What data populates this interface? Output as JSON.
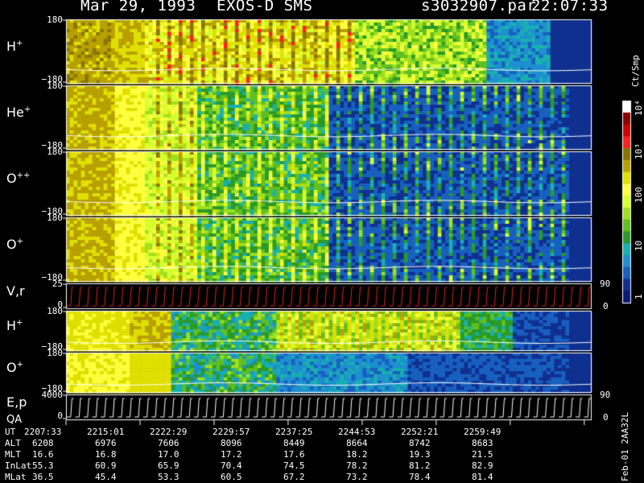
{
  "header": {
    "date": "Mar 29, 1993",
    "instrument": "EXOS-D SMS",
    "file": "s3032907.par",
    "time": "22:07:33"
  },
  "panels": [
    {
      "label": "H",
      "sup": "+",
      "top_tick": "180",
      "bottom_tick": "−180",
      "style": "spectro_h"
    },
    {
      "label": "He",
      "sup": "+",
      "top_tick": "180",
      "bottom_tick": "−180",
      "style": "spectro_fade"
    },
    {
      "label": "O",
      "sup": "++",
      "top_tick": "180",
      "bottom_tick": "−180",
      "style": "spectro_fade"
    },
    {
      "label": "O",
      "sup": "+",
      "top_tick": "180",
      "bottom_tick": "−180",
      "style": "spectro_fade"
    },
    {
      "label": "V,r",
      "sup": "",
      "top_tick": "25",
      "bottom_tick": "0",
      "right_top": "90",
      "right_bottom": "0",
      "style": "line_red"
    },
    {
      "label": "H",
      "sup": "+",
      "top_tick": "180",
      "bottom_tick": "−180",
      "style": "spectro_h2"
    },
    {
      "label": "O",
      "sup": "+",
      "top_tick": "180",
      "bottom_tick": "−180",
      "style": "spectro_o2"
    },
    {
      "label": "E,p",
      "sub_label": "QA",
      "top_tick": "4000",
      "bottom_tick": "0",
      "right_top": "90",
      "right_bottom": "0",
      "style": "line_white"
    }
  ],
  "colorbar": {
    "unit": "Ct/Smp",
    "ticks": [
      "10⁴",
      "10³",
      "100",
      "10",
      "1"
    ],
    "colors": [
      "#ffffff",
      "#8b0000",
      "#cc0000",
      "#ff2020",
      "#8b7500",
      "#b8a000",
      "#e0e000",
      "#ffff40",
      "#d8ff30",
      "#a0e020",
      "#60c020",
      "#2a9a2a",
      "#19b0b0",
      "#1e90d0",
      "#1860c0",
      "#103090",
      "#0a1a78"
    ]
  },
  "xaxis": {
    "rows": [
      {
        "name": "UT",
        "values": [
          "2207:33",
          "2215:01",
          "2222:29",
          "2229:57",
          "2237:25",
          "2244:53",
          "2252:21",
          "2259:49"
        ]
      },
      {
        "name": "ALT",
        "values": [
          "6208",
          "6976",
          "7606",
          "8096",
          "8449",
          "8664",
          "8742",
          "8683"
        ]
      },
      {
        "name": "MLT",
        "values": [
          "16.6",
          "16.8",
          "17.0",
          "17.2",
          "17.6",
          "18.2",
          "19.3",
          "21.5"
        ]
      },
      {
        "name": "InLat",
        "values": [
          "55.3",
          "60.9",
          "65.9",
          "70.4",
          "74.5",
          "78.2",
          "81.2",
          "82.9"
        ]
      },
      {
        "name": "MLat",
        "values": [
          "36.5",
          "45.4",
          "53.3",
          "60.5",
          "67.2",
          "73.2",
          "78.4",
          "81.4"
        ]
      }
    ]
  },
  "side_note": "Feb-01 2AA32L"
}
